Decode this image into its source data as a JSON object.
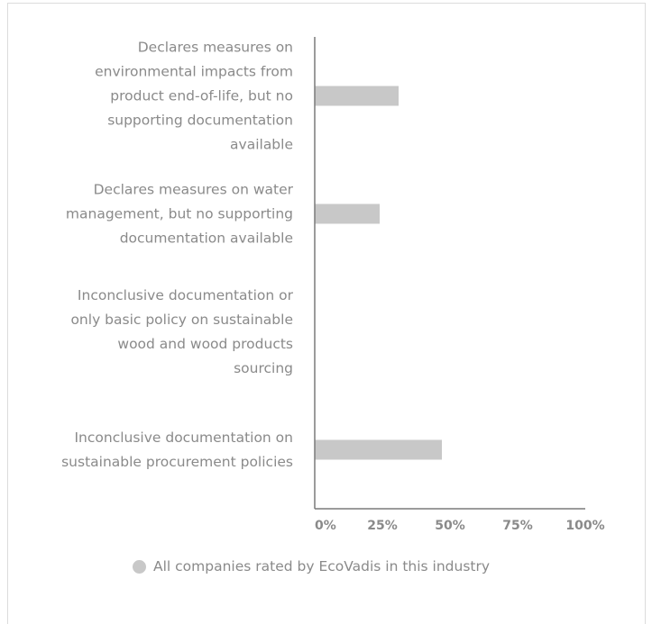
{
  "chart_data": {
    "type": "bar",
    "orientation": "horizontal",
    "categories": [
      [
        "Declares measures on",
        "environmental impacts from",
        "product end-of-life, but no",
        "supporting documentation",
        "available"
      ],
      [
        "Declares measures on water",
        "management, but no supporting",
        "documentation available"
      ],
      [
        "Inconclusive documentation or",
        "only basic policy on sustainable",
        "wood and wood products",
        "sourcing"
      ],
      [
        "Inconclusive documentation on",
        "sustainable procurement policies"
      ]
    ],
    "series": [
      {
        "name": "All companies rated by EcoVadis in this industry",
        "values": [
          31,
          24,
          0,
          47
        ],
        "color": "#c8c8c8"
      }
    ],
    "x_ticks": [
      "0%",
      "25%",
      "50%",
      "75%",
      "100%"
    ],
    "xlim": [
      0,
      100
    ],
    "grid": false,
    "legend_position": "bottom"
  }
}
